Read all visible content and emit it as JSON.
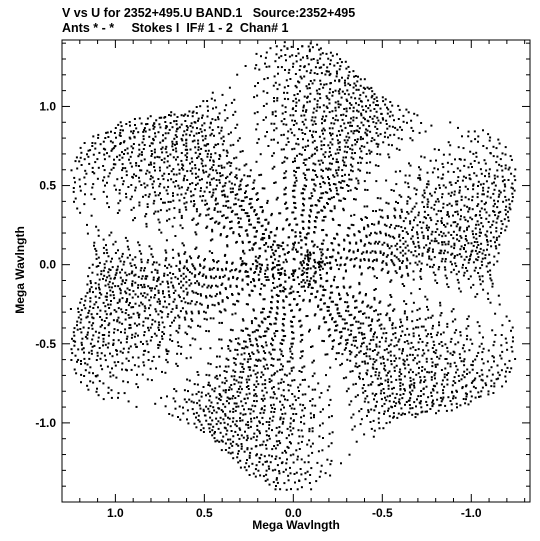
{
  "header": {
    "line1": "V vs U for 2352+495.U BAND.1   Source:2352+495",
    "line2": "Ants * - *     Stokes I  IF# 1 - 2  Chan# 1"
  },
  "chart_data": {
    "type": "scatter",
    "title": "V vs U for 2352+495.U BAND.1   Source:2352+495",
    "subtitle": "Ants * - *     Stokes I  IF# 1 - 2  Chan# 1",
    "xlabel": "Mega Wavlngth",
    "ylabel": "Mega Wavlngth",
    "xlim": [
      1.3,
      -1.33
    ],
    "ylim": [
      -1.5,
      1.42
    ],
    "x_reversed": true,
    "xticks": [
      1.0,
      0.5,
      0.0,
      -0.5,
      -1.0
    ],
    "xtick_labels": [
      "1.0",
      "0.5",
      "0.0",
      "-0.5",
      "-1.0"
    ],
    "yticks": [
      1.0,
      0.5,
      0.0,
      -0.5,
      -1.0
    ],
    "ytick_labels": [
      "1.0",
      "0.5",
      "0.0",
      "-0.5",
      "-1.0"
    ],
    "grid": false,
    "pattern": {
      "description_free_params": true,
      "tracks": 44,
      "max_radius": 1.38,
      "min_radius": 0.04,
      "arc_start_deg": [
        15,
        75,
        135,
        195,
        255,
        315
      ],
      "arc_span_deg": 38,
      "points_per_track_arc": 10
    },
    "sample_points": [
      [
        0.05,
        1.38
      ],
      [
        -0.05,
        1.38
      ],
      [
        0.0,
        1.27
      ],
      [
        0.15,
        1.25
      ],
      [
        -0.2,
        1.22
      ],
      [
        0.97,
        0.9
      ],
      [
        1.0,
        0.75
      ],
      [
        -1.0,
        0.78
      ],
      [
        -1.22,
        0.35
      ],
      [
        1.25,
        -0.28
      ],
      [
        1.1,
        -0.7
      ],
      [
        -1.08,
        -0.75
      ],
      [
        0.1,
        -1.42
      ],
      [
        -0.1,
        -1.42
      ],
      [
        0.0,
        -1.2
      ]
    ]
  }
}
